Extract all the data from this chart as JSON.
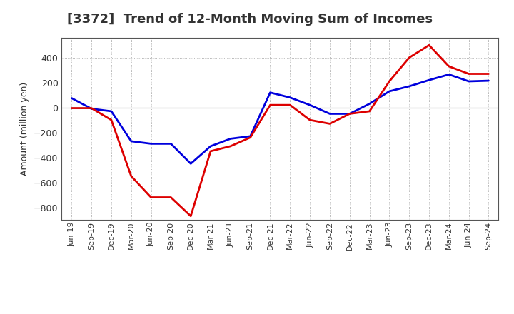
{
  "title": "[3372]  Trend of 12-Month Moving Sum of Incomes",
  "ylabel": "Amount (million yen)",
  "background_color": "#ffffff",
  "plot_bg_color": "#ffffff",
  "grid_color": "#888888",
  "x_labels": [
    "Jun-19",
    "Sep-19",
    "Dec-19",
    "Mar-20",
    "Jun-20",
    "Sep-20",
    "Dec-20",
    "Mar-21",
    "Jun-21",
    "Sep-21",
    "Dec-21",
    "Mar-22",
    "Jun-22",
    "Sep-22",
    "Dec-22",
    "Mar-23",
    "Jun-23",
    "Sep-23",
    "Dec-23",
    "Mar-24",
    "Jun-24",
    "Sep-24"
  ],
  "ordinary_income": [
    75,
    -10,
    -30,
    -270,
    -290,
    -290,
    -450,
    -310,
    -250,
    -230,
    120,
    80,
    20,
    -50,
    -50,
    30,
    130,
    170,
    220,
    265,
    210,
    215
  ],
  "net_income": [
    -5,
    -5,
    -100,
    -550,
    -720,
    -720,
    -870,
    -350,
    -310,
    -240,
    20,
    20,
    -100,
    -130,
    -50,
    -30,
    210,
    400,
    500,
    330,
    270,
    270
  ],
  "ylim": [
    -900,
    560
  ],
  "yticks": [
    -800,
    -600,
    -400,
    -200,
    0,
    200,
    400
  ],
  "ordinary_color": "#0000dd",
  "net_color": "#dd0000",
  "line_width": 2.0,
  "title_fontsize": 13,
  "tick_fontsize": 8,
  "ylabel_fontsize": 9
}
